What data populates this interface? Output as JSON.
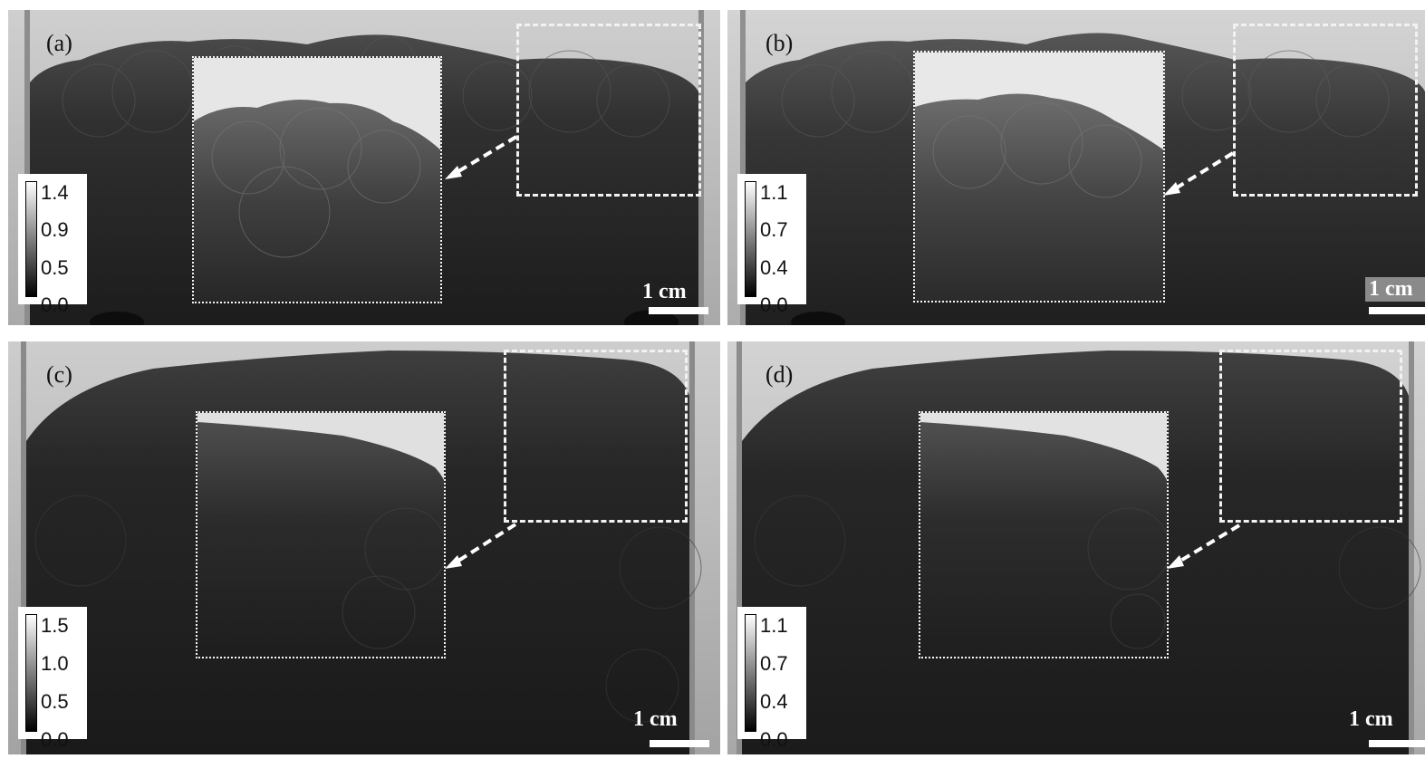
{
  "panels": [
    {
      "id": "a",
      "label": "(a)",
      "colorbar_ticks": [
        "1.4",
        "0.9",
        "0.5",
        "0.0"
      ],
      "scale_text": "1 cm"
    },
    {
      "id": "b",
      "label": "(b)",
      "colorbar_ticks": [
        "1.1",
        "0.7",
        "0.4",
        "0.0"
      ],
      "scale_text": "1 cm"
    },
    {
      "id": "c",
      "label": "(c)",
      "colorbar_ticks": [
        "1.5",
        "1.0",
        "0.5",
        "0.0"
      ],
      "scale_text": "1 cm"
    },
    {
      "id": "d",
      "label": "(d)",
      "colorbar_ticks": [
        "1.1",
        "0.7",
        "0.4",
        "0.0"
      ],
      "scale_text": "1 cm"
    }
  ],
  "colors": {
    "background_light": "#b8b8b8",
    "sample_dark": "#262626",
    "annotation": "#ffffff"
  }
}
